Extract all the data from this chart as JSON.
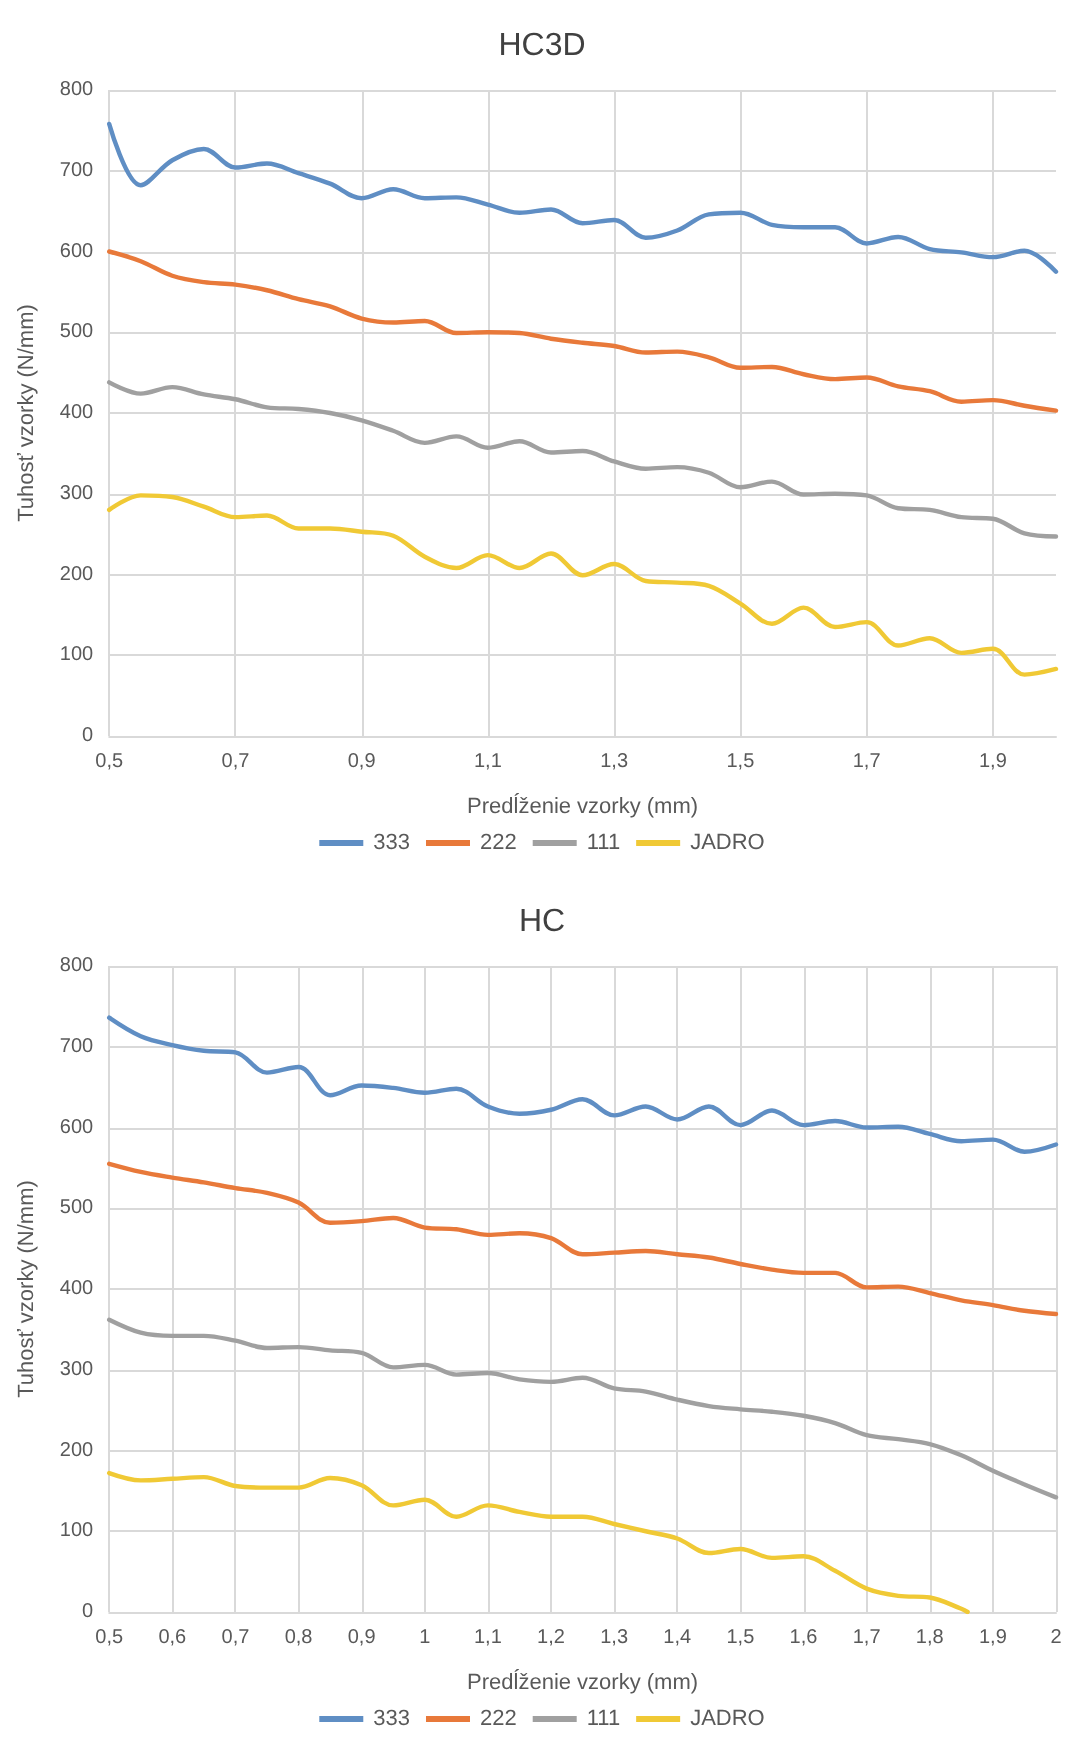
{
  "chart_data": [
    {
      "type": "line",
      "title": "HC3D",
      "xlabel": "Predĺženie vzorky (mm)",
      "ylabel": "Tuhosť vzorky (N/mm)",
      "xlim": [
        0.5,
        2.0
      ],
      "ylim": [
        0,
        800
      ],
      "xticks": [
        {
          "value": 0.5,
          "label": "0,5"
        },
        {
          "value": 0.7,
          "label": "0,7"
        },
        {
          "value": 0.9,
          "label": "0,9"
        },
        {
          "value": 1.1,
          "label": "1,1"
        },
        {
          "value": 1.3,
          "label": "1,3"
        },
        {
          "value": 1.5,
          "label": "1,5"
        },
        {
          "value": 1.7,
          "label": "1,7"
        },
        {
          "value": 1.9,
          "label": "1,9"
        }
      ],
      "yticks": [
        0,
        100,
        200,
        300,
        400,
        500,
        600,
        700,
        800
      ],
      "grid": true,
      "legend": "bottom",
      "marker": "none",
      "line_style": "solid",
      "x": [
        0.5,
        0.55,
        0.6,
        0.65,
        0.7,
        0.75,
        0.8,
        0.85,
        0.9,
        0.95,
        1.0,
        1.05,
        1.1,
        1.15,
        1.2,
        1.25,
        1.3,
        1.35,
        1.4,
        1.45,
        1.5,
        1.55,
        1.6,
        1.65,
        1.7,
        1.75,
        1.8,
        1.85,
        1.9,
        1.95,
        2.0
      ],
      "series": [
        {
          "name": "333",
          "color": "#5f8ec4",
          "values": [
            758,
            682,
            713,
            727,
            704,
            709,
            697,
            684,
            666,
            677,
            666,
            667,
            658,
            648,
            652,
            635,
            639,
            617,
            626,
            646,
            648,
            633,
            630,
            630,
            610,
            618,
            603,
            599,
            593,
            601,
            575
          ]
        },
        {
          "name": "222",
          "color": "#e8793a",
          "values": [
            600,
            588,
            570,
            562,
            559,
            552,
            541,
            532,
            517,
            512,
            514,
            499,
            500,
            499,
            492,
            487,
            483,
            475,
            476,
            469,
            456,
            457,
            448,
            442,
            444,
            433,
            427,
            414,
            416,
            409,
            403
          ]
        },
        {
          "name": "111",
          "color": "#a0a0a0",
          "values": [
            438,
            424,
            432,
            423,
            417,
            407,
            405,
            400,
            391,
            378,
            363,
            371,
            357,
            365,
            351,
            353,
            340,
            331,
            333,
            326,
            308,
            315,
            299,
            300,
            298,
            282,
            280,
            271,
            269,
            251,
            247
          ]
        },
        {
          "name": "JADRO",
          "color": "#f0c935",
          "values": [
            280,
            298,
            296,
            284,
            271,
            273,
            257,
            257,
            253,
            248,
            222,
            208,
            224,
            208,
            226,
            199,
            213,
            192,
            190,
            186,
            164,
            139,
            159,
            135,
            141,
            112,
            121,
            103,
            108,
            76,
            83
          ]
        }
      ]
    },
    {
      "type": "line",
      "title": "HC",
      "xlabel": "Predĺženie vzorky (mm)",
      "ylabel": "Tuhosť vzorky (N/mm)",
      "xlim": [
        0.5,
        2
      ],
      "ylim": [
        0,
        800
      ],
      "xticks": [
        {
          "value": 0.5,
          "label": "0,5"
        },
        {
          "value": 0.6,
          "label": "0,6"
        },
        {
          "value": 0.7,
          "label": "0,7"
        },
        {
          "value": 0.8,
          "label": "0,8"
        },
        {
          "value": 0.9,
          "label": "0,9"
        },
        1,
        {
          "value": 1.1,
          "label": "1,1"
        },
        {
          "value": 1.2,
          "label": "1,2"
        },
        {
          "value": 1.3,
          "label": "1,3"
        },
        {
          "value": 1.4,
          "label": "1,4"
        },
        {
          "value": 1.5,
          "label": "1,5"
        },
        {
          "value": 1.6,
          "label": "1,6"
        },
        {
          "value": 1.7,
          "label": "1,7"
        },
        {
          "value": 1.8,
          "label": "1,8"
        },
        {
          "value": 1.9,
          "label": "1,9"
        },
        2
      ],
      "yticks": [
        0,
        100,
        200,
        300,
        400,
        500,
        600,
        700,
        800
      ],
      "grid": true,
      "legend": "bottom",
      "marker": "none",
      "line_style": "solid",
      "x": [
        0.5,
        0.55,
        0.6,
        0.65,
        0.7,
        0.75,
        0.8,
        0.85,
        0.9,
        0.95,
        1.0,
        1.05,
        1.1,
        1.15,
        1.2,
        1.25,
        1.3,
        1.35,
        1.4,
        1.45,
        1.5,
        1.55,
        1.6,
        1.65,
        1.7,
        1.75,
        1.8,
        1.85,
        1.9,
        1.95,
        2.0
      ],
      "series": [
        {
          "name": "333",
          "color": "#5f8ec4",
          "values": [
            736,
            713,
            702,
            695,
            693,
            668,
            675,
            640,
            652,
            649,
            643,
            648,
            626,
            617,
            622,
            635,
            615,
            626,
            610,
            626,
            603,
            621,
            603,
            608,
            600,
            601,
            592,
            583,
            585,
            570,
            579
          ]
        },
        {
          "name": "222",
          "color": "#e8793a",
          "values": [
            555,
            545,
            538,
            532,
            525,
            519,
            507,
            482,
            484,
            488,
            476,
            474,
            467,
            469,
            463,
            443,
            445,
            447,
            443,
            439,
            431,
            424,
            420,
            420,
            402,
            403,
            395,
            386,
            380,
            373,
            369
          ]
        },
        {
          "name": "111",
          "color": "#a0a0a0",
          "values": [
            362,
            346,
            342,
            342,
            336,
            327,
            328,
            324,
            321,
            303,
            306,
            294,
            296,
            288,
            285,
            290,
            277,
            273,
            263,
            255,
            251,
            248,
            243,
            234,
            219,
            214,
            208,
            194,
            175,
            158,
            142
          ]
        },
        {
          "name": "JADRO",
          "color": "#f0c935",
          "x": [
            0.5,
            0.55,
            0.6,
            0.65,
            0.7,
            0.75,
            0.8,
            0.85,
            0.9,
            0.95,
            1.0,
            1.05,
            1.1,
            1.15,
            1.2,
            1.25,
            1.3,
            1.35,
            1.4,
            1.45,
            1.5,
            1.55,
            1.6,
            1.65,
            1.7,
            1.75,
            1.8,
            1.85,
            1.86
          ],
          "values": [
            172,
            163,
            165,
            167,
            156,
            154,
            154,
            166,
            157,
            132,
            139,
            118,
            132,
            124,
            118,
            118,
            109,
            100,
            91,
            73,
            78,
            67,
            69,
            51,
            29,
            20,
            18,
            4,
            0
          ]
        }
      ]
    }
  ]
}
